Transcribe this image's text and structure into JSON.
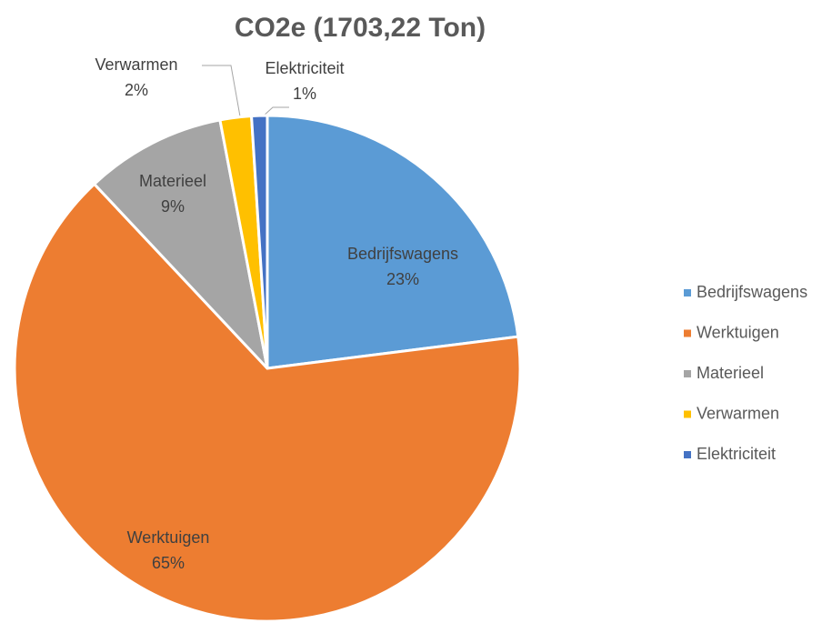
{
  "chart_data": {
    "type": "pie",
    "title": "CO2e (1703,22 Ton)",
    "categories": [
      "Bedrijfswagens",
      "Werktuigen",
      "Materieel",
      "Verwarmen",
      "Elektriciteit"
    ],
    "values": [
      23,
      65,
      9,
      2,
      1
    ],
    "value_labels": [
      "23%",
      "65%",
      "9%",
      "2%",
      "1%"
    ],
    "colors": [
      "#5b9bd5",
      "#ed7d31",
      "#a5a5a5",
      "#ffc000",
      "#4472c4"
    ],
    "legend": "right"
  }
}
